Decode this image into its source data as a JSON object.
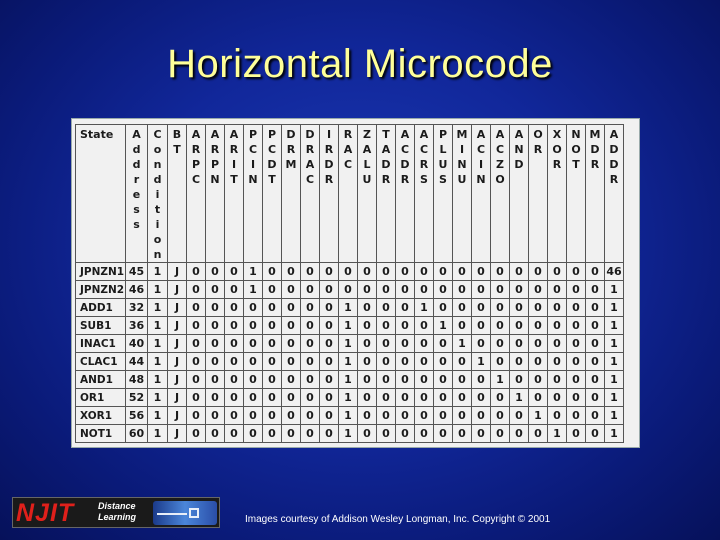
{
  "slide": {
    "title": "Horizontal Microcode"
  },
  "table": {
    "state_header": "State",
    "columns": [
      "A\nd\nd\nr\ne\ns\ns",
      "C\no\nn\nd\ni\nt\ni\no\nn",
      "B\nT",
      "A\nR\nP\nC",
      "A\nR\nP\nN",
      "A\nR\nI\nT",
      "P\nC\nI\nN",
      "P\nC\nD\nT",
      "D\nR\nM",
      "D\nR\nA\nC",
      "I\nR\nD\nR",
      "R\nA\nC",
      "Z\nA\nL\nU",
      "T\nA\nD\nR",
      "A\nC\nD\nR",
      "A\nC\nR\nS",
      "P\nL\nU\nS",
      "M\nI\nN\nU",
      "A\nC\nI\nN",
      "A\nC\nZ\nO",
      "A\nN\nD",
      "O\nR",
      "X\nO\nR",
      "N\nO\nT",
      "M\nD\nR",
      "A\nD\nD\nR"
    ],
    "rows": [
      {
        "state": "JPNZN1",
        "cells": [
          "45",
          "1",
          "J",
          "0",
          "0",
          "0",
          "1",
          "0",
          "0",
          "0",
          "0",
          "0",
          "0",
          "0",
          "0",
          "0",
          "0",
          "0",
          "0",
          "0",
          "0",
          "0",
          "0",
          "0",
          "0",
          "46"
        ]
      },
      {
        "state": "JPNZN2",
        "cells": [
          "46",
          "1",
          "J",
          "0",
          "0",
          "0",
          "1",
          "0",
          "0",
          "0",
          "0",
          "0",
          "0",
          "0",
          "0",
          "0",
          "0",
          "0",
          "0",
          "0",
          "0",
          "0",
          "0",
          "0",
          "0",
          "1"
        ]
      },
      {
        "state": "ADD1",
        "cells": [
          "32",
          "1",
          "J",
          "0",
          "0",
          "0",
          "0",
          "0",
          "0",
          "0",
          "0",
          "1",
          "0",
          "0",
          "0",
          "1",
          "0",
          "0",
          "0",
          "0",
          "0",
          "0",
          "0",
          "0",
          "0",
          "1"
        ]
      },
      {
        "state": "SUB1",
        "cells": [
          "36",
          "1",
          "J",
          "0",
          "0",
          "0",
          "0",
          "0",
          "0",
          "0",
          "0",
          "1",
          "0",
          "0",
          "0",
          "0",
          "1",
          "0",
          "0",
          "0",
          "0",
          "0",
          "0",
          "0",
          "0",
          "1"
        ]
      },
      {
        "state": "INAC1",
        "cells": [
          "40",
          "1",
          "J",
          "0",
          "0",
          "0",
          "0",
          "0",
          "0",
          "0",
          "0",
          "1",
          "0",
          "0",
          "0",
          "0",
          "0",
          "1",
          "0",
          "0",
          "0",
          "0",
          "0",
          "0",
          "0",
          "1"
        ]
      },
      {
        "state": "CLAC1",
        "cells": [
          "44",
          "1",
          "J",
          "0",
          "0",
          "0",
          "0",
          "0",
          "0",
          "0",
          "0",
          "1",
          "0",
          "0",
          "0",
          "0",
          "0",
          "0",
          "1",
          "0",
          "0",
          "0",
          "0",
          "0",
          "0",
          "1"
        ]
      },
      {
        "state": "AND1",
        "cells": [
          "48",
          "1",
          "J",
          "0",
          "0",
          "0",
          "0",
          "0",
          "0",
          "0",
          "0",
          "1",
          "0",
          "0",
          "0",
          "0",
          "0",
          "0",
          "0",
          "1",
          "0",
          "0",
          "0",
          "0",
          "0",
          "1"
        ]
      },
      {
        "state": "OR1",
        "cells": [
          "52",
          "1",
          "J",
          "0",
          "0",
          "0",
          "0",
          "0",
          "0",
          "0",
          "0",
          "1",
          "0",
          "0",
          "0",
          "0",
          "0",
          "0",
          "0",
          "0",
          "1",
          "0",
          "0",
          "0",
          "0",
          "1"
        ]
      },
      {
        "state": "XOR1",
        "cells": [
          "56",
          "1",
          "J",
          "0",
          "0",
          "0",
          "0",
          "0",
          "0",
          "0",
          "0",
          "1",
          "0",
          "0",
          "0",
          "0",
          "0",
          "0",
          "0",
          "0",
          "0",
          "1",
          "0",
          "0",
          "0",
          "1"
        ]
      },
      {
        "state": "NOT1",
        "cells": [
          "60",
          "1",
          "J",
          "0",
          "0",
          "0",
          "0",
          "0",
          "0",
          "0",
          "0",
          "1",
          "0",
          "0",
          "0",
          "0",
          "0",
          "0",
          "0",
          "0",
          "0",
          "0",
          "1",
          "0",
          "0",
          "1"
        ]
      }
    ]
  },
  "footer": {
    "logo_text": "NJIT",
    "logo_sub": "Distance\nLearning",
    "credit": "Images courtesy of Addison Wesley Longman, Inc. Copyright © 2001"
  }
}
